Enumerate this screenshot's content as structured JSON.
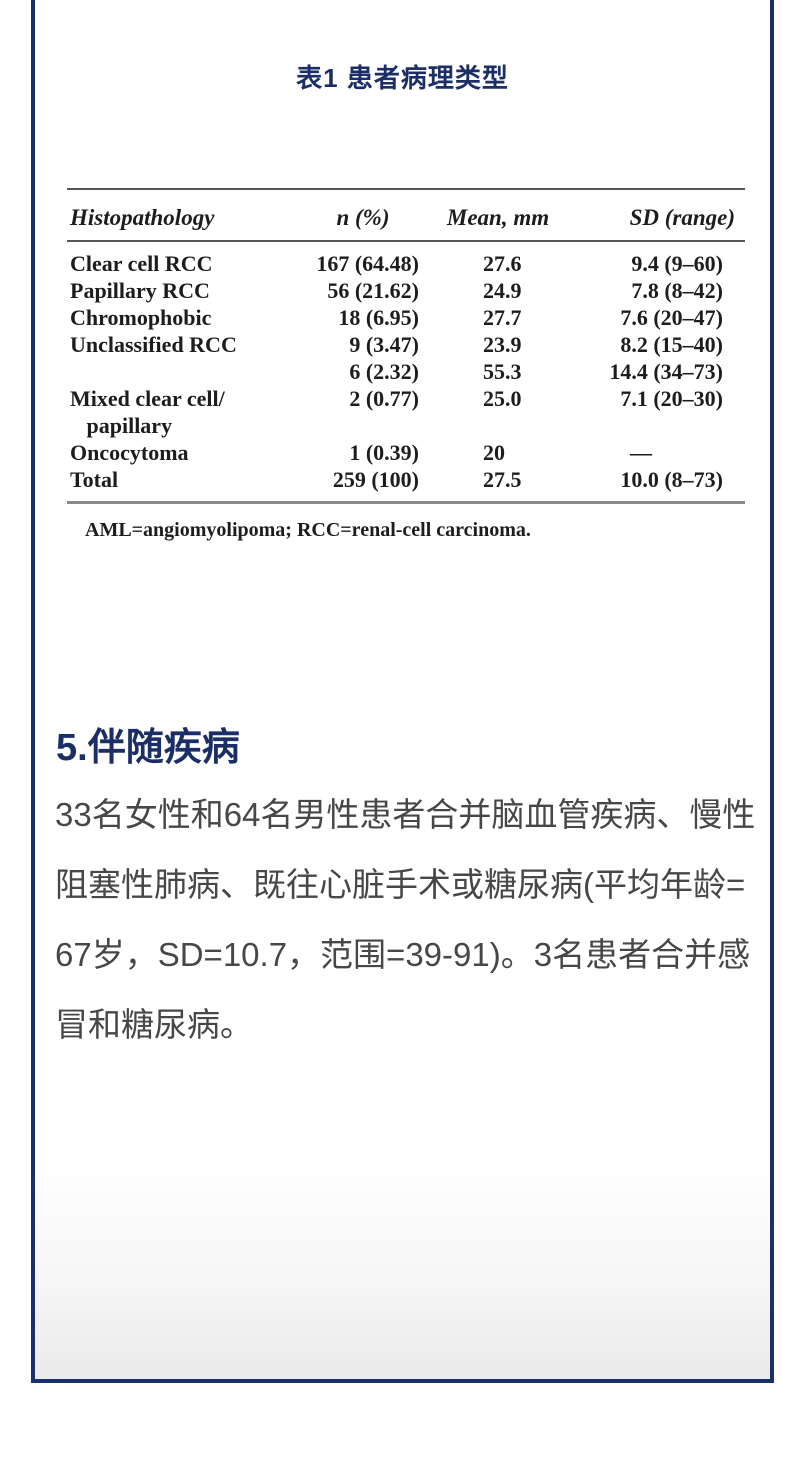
{
  "theme": {
    "accent_navy": "#1c2e66",
    "card_border": "#18306b",
    "body_text": "#474747",
    "table_text": "#1d1d1d"
  },
  "table_section": {
    "caption": "表1 患者病理类型",
    "table": {
      "headers": [
        "Histopathology",
        "n (%)",
        "Mean, mm",
        "SD (range)"
      ],
      "rows": [
        {
          "label": "Clear cell RCC",
          "n": "167 (64.48)",
          "mean": "27.6",
          "sd": "9.4 (9–60)"
        },
        {
          "label": "Papillary RCC",
          "n": "56 (21.62)",
          "mean": "24.9",
          "sd": "7.8 (8–42)"
        },
        {
          "label": "Chromophobic",
          "n": "18 (6.95)",
          "mean": "27.7",
          "sd": "7.6 (20–47)"
        },
        {
          "label": "Unclassified RCC",
          "n": "9 (3.47)",
          "mean": "23.9",
          "sd": "8.2 (15–40)"
        },
        {
          "label": "",
          "n": "6 (2.32)",
          "mean": "55.3",
          "sd": "14.4 (34–73)"
        },
        {
          "label": "Mixed clear cell/\n   papillary",
          "n": "2 (0.77)",
          "mean": "25.0",
          "sd": "7.1 (20–30)"
        },
        {
          "label": "Oncocytoma",
          "n": "1 (0.39)",
          "mean": "20",
          "sd": "—"
        },
        {
          "label": "Total",
          "n": "259 (100)",
          "mean": "27.5",
          "sd": "10.0 (8–73)"
        }
      ],
      "footnote": "AML=angiomyolipoma; RCC=renal-cell carcinoma."
    }
  },
  "section": {
    "heading": "5.伴随疾病",
    "paragraph_lines": [
      "33名女性和64名男性患者合并脑血管疾病、慢性",
      "阻塞性肺病、既往心脏手术或糖尿病(平均年龄=",
      "67岁，SD=10.7，范围=39-91)。3名患者合并感",
      "冒和糖尿病。"
    ]
  }
}
